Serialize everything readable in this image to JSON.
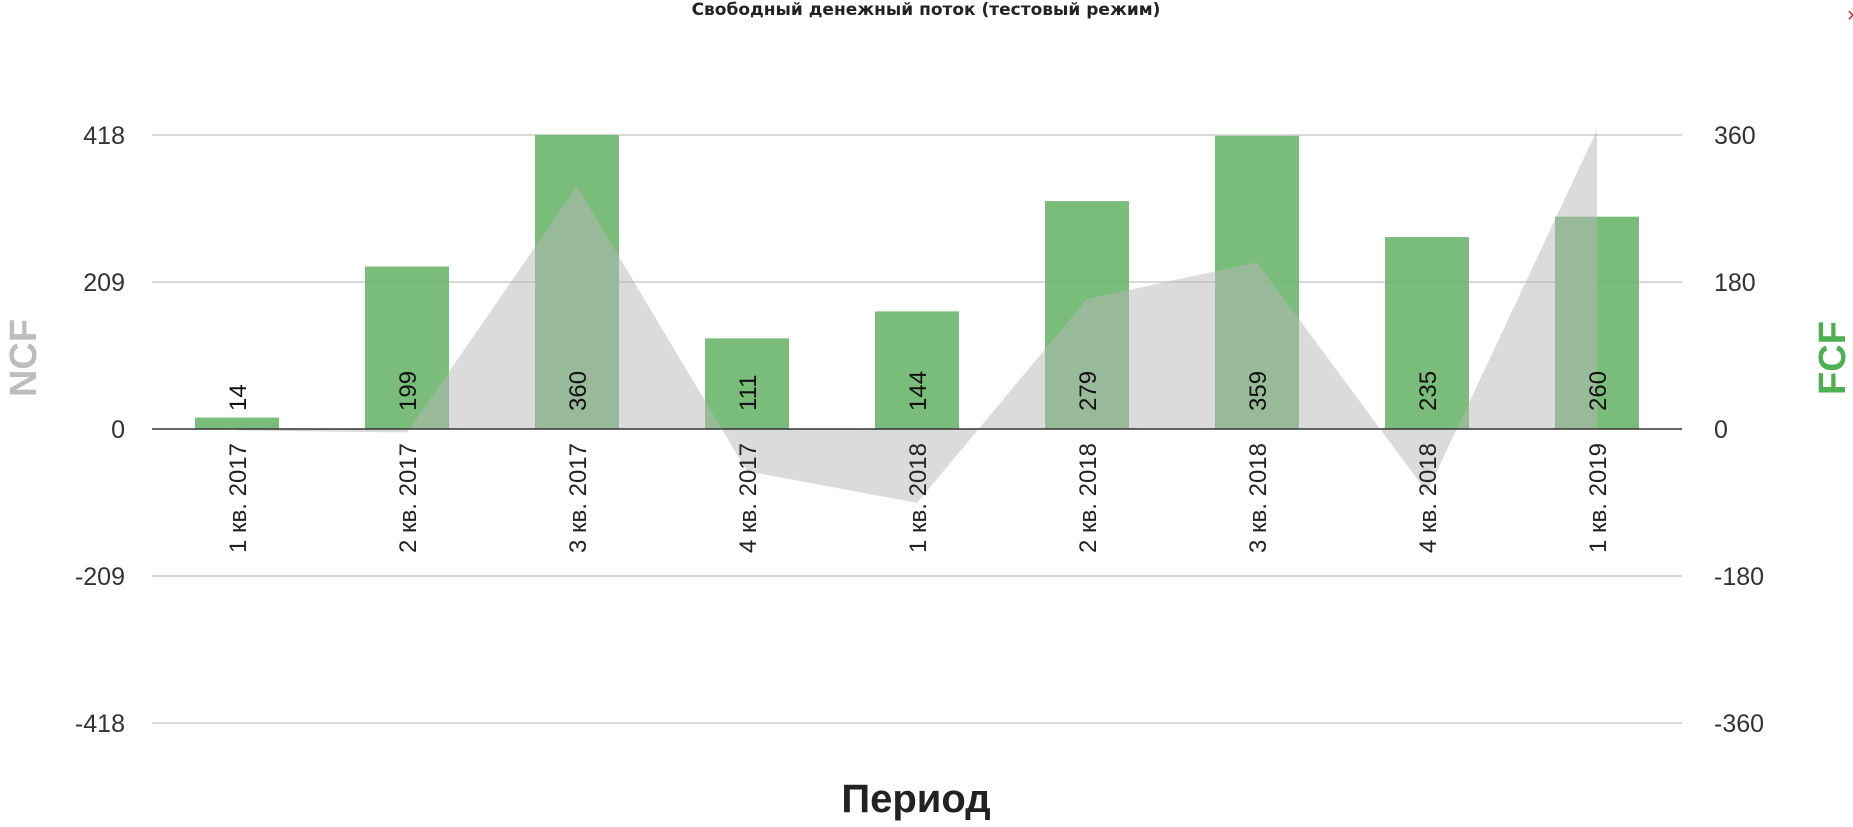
{
  "chart_data": {
    "type": "bar",
    "title": "Свободный денежный поток (тестовый режим)",
    "xlabel": "Период",
    "ylabel_left": "NCF",
    "ylabel_right": "FCF",
    "categories": [
      "1 кв. 2017",
      "2 кв. 2017",
      "3 кв. 2017",
      "4 кв. 2017",
      "1 кв. 2018",
      "2 кв. 2018",
      "3 кв. 2018",
      "4 кв. 2018",
      "1 кв. 2019"
    ],
    "left_axis": {
      "min": -418,
      "max": 418,
      "ticks": [
        418,
        209,
        0,
        -209,
        -418
      ]
    },
    "right_axis": {
      "min": -360,
      "max": 360,
      "ticks": [
        360,
        180,
        0,
        -180,
        -360
      ]
    },
    "series": [
      {
        "name": "FCF",
        "type": "bar",
        "axis": "right",
        "color": "#6cb56c",
        "values": [
          14,
          199,
          360,
          111,
          144,
          279,
          359,
          235,
          260
        ],
        "labels": [
          "14",
          "199",
          "360",
          "111",
          "144",
          "279",
          "359",
          "235",
          "260"
        ]
      },
      {
        "name": "NCF",
        "type": "area",
        "axis": "left",
        "color": "#d6d6d6",
        "values": [
          -2,
          -5,
          345,
          -60,
          -105,
          185,
          237,
          -90,
          425
        ]
      }
    ],
    "grid": true,
    "close_symbol": "×"
  }
}
